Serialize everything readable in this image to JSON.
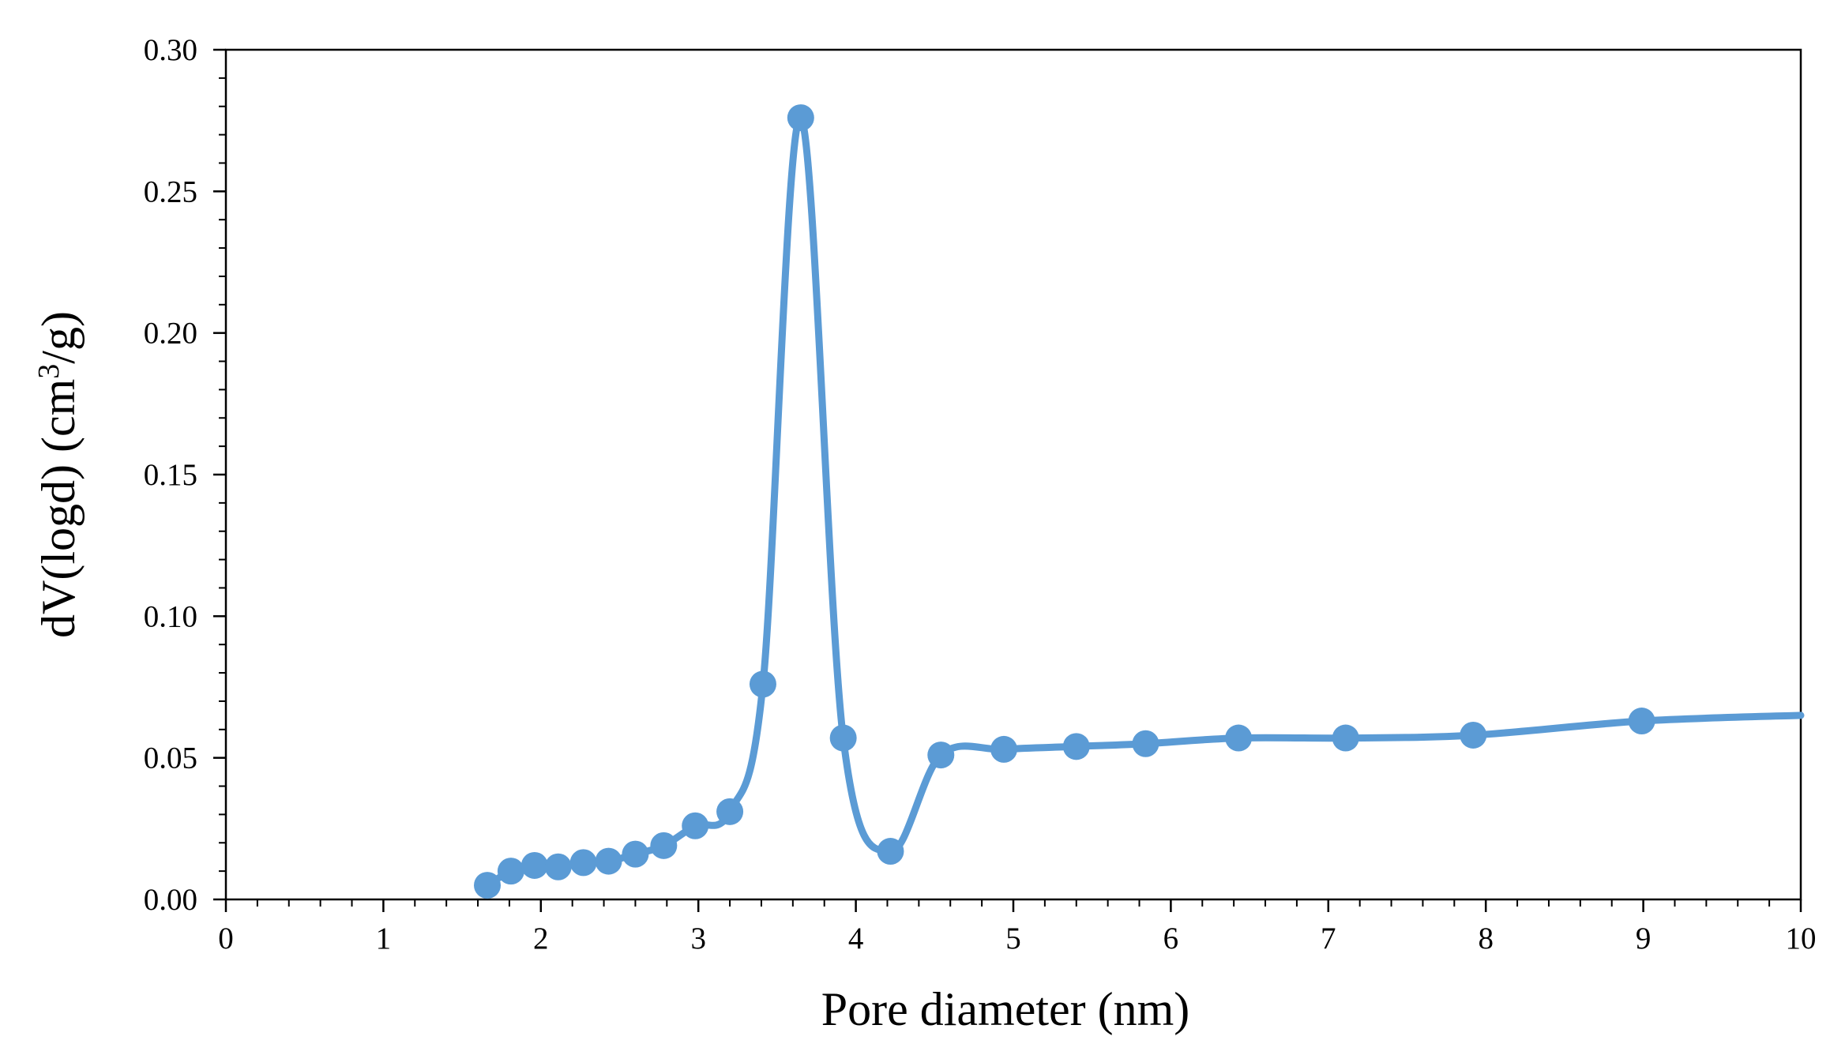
{
  "chart_data": {
    "type": "line",
    "title": "",
    "xlabel": "Pore diameter (nm)",
    "ylabel_parts": [
      "dV(logd) (cm",
      "3",
      "/g)"
    ],
    "xlim": [
      0,
      10
    ],
    "ylim": [
      0,
      0.3
    ],
    "x_ticks": [
      "0",
      "1",
      "2",
      "3",
      "4",
      "5",
      "6",
      "7",
      "8",
      "9",
      "10"
    ],
    "y_ticks": [
      "0.00",
      "0.05",
      "0.10",
      "0.15",
      "0.20",
      "0.25",
      "0.30"
    ],
    "grid": false,
    "legend": "none",
    "series": [
      {
        "color": "#5b9bd5",
        "marker": "circle",
        "smooth": true,
        "points": [
          {
            "x": 1.66,
            "y": 0.005
          },
          {
            "x": 1.81,
            "y": 0.01
          },
          {
            "x": 1.96,
            "y": 0.012
          },
          {
            "x": 2.11,
            "y": 0.0115
          },
          {
            "x": 2.27,
            "y": 0.013
          },
          {
            "x": 2.43,
            "y": 0.0135
          },
          {
            "x": 2.6,
            "y": 0.016
          },
          {
            "x": 2.78,
            "y": 0.019
          },
          {
            "x": 2.98,
            "y": 0.026
          },
          {
            "x": 3.2,
            "y": 0.031
          },
          {
            "x": 3.41,
            "y": 0.076
          },
          {
            "x": 3.65,
            "y": 0.276
          },
          {
            "x": 3.92,
            "y": 0.057
          },
          {
            "x": 4.22,
            "y": 0.017
          },
          {
            "x": 4.54,
            "y": 0.051
          },
          {
            "x": 4.94,
            "y": 0.053
          },
          {
            "x": 5.4,
            "y": 0.054
          },
          {
            "x": 5.84,
            "y": 0.055
          },
          {
            "x": 6.43,
            "y": 0.057
          },
          {
            "x": 7.11,
            "y": 0.057
          },
          {
            "x": 7.92,
            "y": 0.058
          },
          {
            "x": 8.99,
            "y": 0.063
          }
        ],
        "line_end": {
          "x": 10.0,
          "y": 0.065
        }
      }
    ]
  }
}
